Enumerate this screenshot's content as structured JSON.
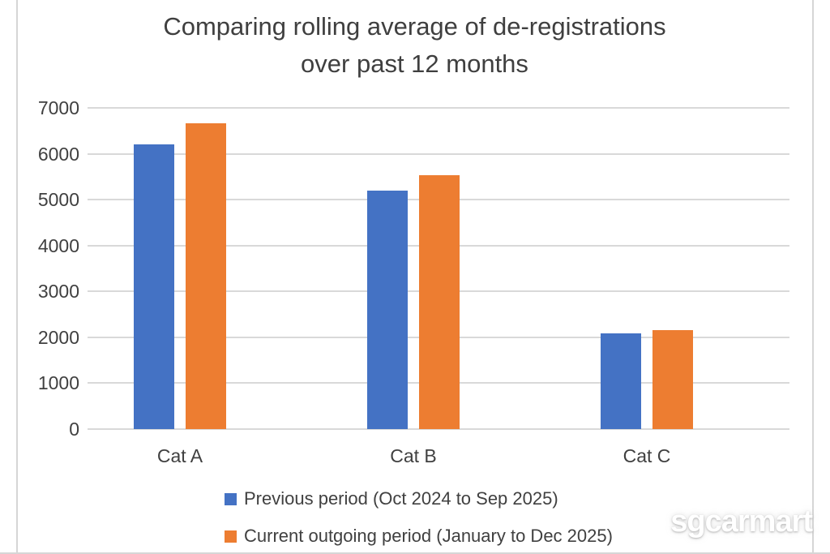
{
  "watermark": {
    "text": "sgcarmart"
  },
  "colors": {
    "series_blue": "#4472C4",
    "series_orange": "#ED7D31",
    "gridline": "#D9D9D9",
    "text": "#404040",
    "frame_border": "#D6D6D6",
    "watermark_text": "#FFFFFF"
  },
  "chart_data": {
    "type": "bar",
    "title": "Comparing rolling average of de-registrations over past 12 months",
    "title_lines": [
      "Comparing rolling average of de-registrations",
      "over past 12 months"
    ],
    "categories": [
      "Cat A",
      "Cat B",
      "Cat C"
    ],
    "series": [
      {
        "name": "Previous period (Oct 2024 to Sep 2025)",
        "color": "#4472C4",
        "values": [
          6200,
          5200,
          2090
        ]
      },
      {
        "name": "Current outgoing period (January to Dec 2025)",
        "color": "#ED7D31",
        "values": [
          6670,
          5530,
          2150
        ]
      }
    ],
    "xlabel": "",
    "ylabel": "",
    "ylim": [
      0,
      7000
    ],
    "ytick_step": 1000,
    "yticks": [
      0,
      1000,
      2000,
      3000,
      4000,
      5000,
      6000,
      7000
    ],
    "grid": true,
    "legend_position": "bottom"
  }
}
